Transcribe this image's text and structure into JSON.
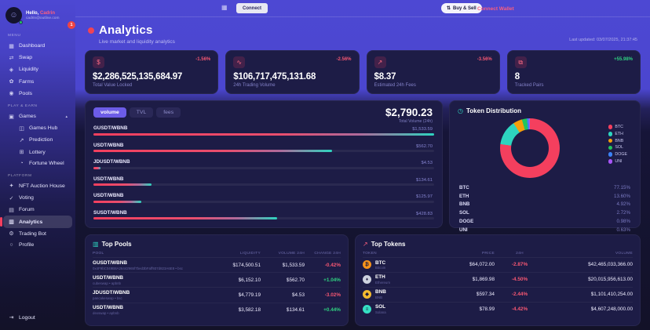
{
  "colors": {
    "accent_pink": "#f43f5e",
    "accent_teal": "#2dd4bf",
    "accent_purple": "#6c5ce7",
    "bg_dark": "#131228",
    "bg_card": "#1d1c46",
    "top_band": "#4d48d3"
  },
  "user": {
    "greeting": "Hello,",
    "name": "Cadrin",
    "email": "cadrin@outline.com",
    "notification_count": "1",
    "avatar_glyph": "☺"
  },
  "topbar": {
    "apps_glyph": "▦",
    "connect_button": "Connect",
    "buy_sell_glyph": "⇅",
    "buy_sell_button": "Buy & Sell",
    "connect_wallet": "Connect Wallet"
  },
  "page_header": {
    "title": "Analytics",
    "subtitle": "Live market and liquidity analytics",
    "last_updated": "Last updated: 03/07/2025, 21:37:45"
  },
  "sidebar": {
    "sections": [
      {
        "label": "Menu",
        "items": [
          {
            "glyph": "▦",
            "label": "Dashboard"
          },
          {
            "glyph": "⇄",
            "label": "Swap"
          },
          {
            "glyph": "◈",
            "label": "Liquidity"
          },
          {
            "glyph": "✿",
            "label": "Farms"
          },
          {
            "glyph": "◉",
            "label": "Pools"
          }
        ]
      },
      {
        "label": "Play & Earn",
        "items": [
          {
            "glyph": "▣",
            "label": "Games",
            "chevron": "▴"
          }
        ],
        "subitems": [
          {
            "glyph": "◫",
            "label": "Games Hub"
          },
          {
            "glyph": "↗",
            "label": "Prediction"
          },
          {
            "glyph": "⊞",
            "label": "Lottery"
          },
          {
            "glyph": "◔",
            "label": "Fortune Wheel"
          }
        ]
      },
      {
        "label": "Platform",
        "items": [
          {
            "glyph": "✦",
            "label": "NFT Auction House"
          },
          {
            "glyph": "✓",
            "label": "Voting"
          },
          {
            "glyph": "▤",
            "label": "Forum"
          },
          {
            "glyph": "▥",
            "label": "Analytics"
          },
          {
            "glyph": "⚙",
            "label": "Trading Bot"
          },
          {
            "glyph": "○",
            "label": "Profile"
          }
        ]
      }
    ],
    "logout": {
      "glyph": "⇥",
      "label": "Logout"
    }
  },
  "stats": [
    {
      "icon_glyph": "$",
      "value": "$2,286,525,135,684.97",
      "label": "Total Value Locked",
      "change": "-1.56%"
    },
    {
      "icon_glyph": "∿",
      "value": "$106,717,475,131.68",
      "label": "24h Trading Volume",
      "change": "-2.56%"
    },
    {
      "icon_glyph": "↗",
      "value": "$8.37",
      "label": "Estimated 24h Fees",
      "change": "-3.56%"
    },
    {
      "icon_glyph": "⧉",
      "value": "8",
      "label": "Tracked Pairs",
      "change": "+55.98%"
    }
  ],
  "volume_chart": {
    "tabs": [
      {
        "label": "volume"
      },
      {
        "label": "TVL"
      },
      {
        "label": "fees"
      }
    ],
    "active_tab": "volume",
    "total": "$2,790.23",
    "total_label": "Total Volume (24h)",
    "rows": [
      {
        "pair": "GUSDT/WBNB",
        "value": "$1,533.59",
        "width_pct": 100
      },
      {
        "pair": "USDT/WBNB",
        "value": "$562.70",
        "width_pct": 70
      },
      {
        "pair": "JDUSDT/WBNB",
        "value": "$4.53",
        "width_pct": 2
      },
      {
        "pair": "USDT/WBNB",
        "value": "$134.61",
        "width_pct": 17
      },
      {
        "pair": "USDT/WBNB",
        "value": "$125.97",
        "width_pct": 14
      },
      {
        "pair": "SUSDT/WBNB",
        "value": "$428.83",
        "width_pct": 54
      }
    ]
  },
  "token_distribution": {
    "title": "Token Distribution",
    "icon_glyph": "◷",
    "items": [
      {
        "symbol": "BTC",
        "pct": "77.15%",
        "pct_num": 77.15,
        "color": "#f43f5e"
      },
      {
        "symbol": "ETH",
        "pct": "13.60%",
        "pct_num": 13.6,
        "color": "#2dd4bf"
      },
      {
        "symbol": "BNB",
        "pct": "4.92%",
        "pct_num": 4.92,
        "color": "#f59e0b"
      },
      {
        "symbol": "SOL",
        "pct": "2.72%",
        "pct_num": 2.72,
        "color": "#22c55e"
      },
      {
        "symbol": "DOGE",
        "pct": "0.98%",
        "pct_num": 0.98,
        "color": "#3b82f6"
      },
      {
        "symbol": "UNI",
        "pct": "0.63%",
        "pct_num": 0.63,
        "color": "#a855f7"
      }
    ]
  },
  "top_pools": {
    "title": "Top Pools",
    "icon_glyph": "▥",
    "columns": [
      "Pool",
      "Liquidity",
      "Volume 24h",
      "Change 24h"
    ],
    "rows": [
      {
        "pair": "GUSDT/WBNB",
        "sub": "0x4F9bC049B8A26442965f7bed3bFaff937d823A6E8 • bsc",
        "liquidity": "$174,500.51",
        "volume": "$1,533.59",
        "change": "-0.42%"
      },
      {
        "pair": "USDT/WBNB",
        "sub": "cubeswap • apbnb",
        "liquidity": "$6,152.10",
        "volume": "$562.70",
        "change": "+1.04%"
      },
      {
        "pair": "JDUSDT/WBNB",
        "sub": "pancakeswap • bsc",
        "liquidity": "$4,779.19",
        "volume": "$4.53",
        "change": "-3.02%"
      },
      {
        "pair": "USDT/WBNB",
        "sub": "dexswap • apbnb",
        "liquidity": "$3,582.18",
        "volume": "$134.61",
        "change": "+0.44%"
      }
    ]
  },
  "top_tokens": {
    "title": "Top Tokens",
    "icon_glyph": "↗",
    "columns": [
      "Token",
      "Price",
      "24h",
      "Volume"
    ],
    "rows": [
      {
        "symbol": "BTC",
        "name": "Bitcoin",
        "glyph": "₿",
        "color": "#f7931a",
        "price": "$64,072.00",
        "change": "-2.87%",
        "volume": "$42,465,033,366.00"
      },
      {
        "symbol": "ETH",
        "name": "Ethereum",
        "glyph": "♦",
        "color": "#cdd2de",
        "price": "$1,869.98",
        "change": "-4.50%",
        "volume": "$20,015,956,613.00"
      },
      {
        "symbol": "BNB",
        "name": "BNB",
        "glyph": "◆",
        "color": "#f3ba2f",
        "price": "$597.34",
        "change": "-2.44%",
        "volume": "$1,101,410,254.00"
      },
      {
        "symbol": "SOL",
        "name": "Solana",
        "glyph": "≡",
        "color": "#35e0c3",
        "price": "$78.99",
        "change": "-4.42%",
        "volume": "$4,607,248,000.00"
      }
    ]
  },
  "chart_data": [
    {
      "type": "bar",
      "orientation": "horizontal",
      "title": "Pair volume (24h)",
      "categories": [
        "GUSDT/WBNB",
        "USDT/WBNB",
        "JDUSDT/WBNB",
        "USDT/WBNB",
        "USDT/WBNB",
        "SUSDT/WBNB"
      ],
      "values": [
        1533.59,
        562.7,
        4.53,
        134.61,
        125.97,
        428.83
      ],
      "total": 2790.23,
      "xlabel": "",
      "ylabel": "",
      "grid": false,
      "legend": false
    },
    {
      "type": "pie",
      "title": "Token Distribution",
      "labels": [
        "BTC",
        "ETH",
        "BNB",
        "SOL",
        "DOGE",
        "UNI"
      ],
      "values": [
        77.15,
        13.6,
        4.92,
        2.72,
        0.98,
        0.63
      ],
      "colors": [
        "#f43f5e",
        "#2dd4bf",
        "#f59e0b",
        "#22c55e",
        "#3b82f6",
        "#a855f7"
      ],
      "legend_position": "right",
      "donut": true
    }
  ]
}
